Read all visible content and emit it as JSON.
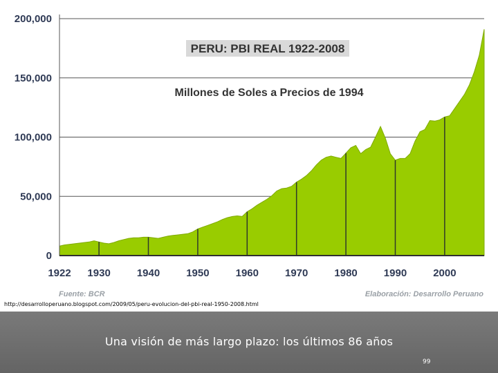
{
  "chart_data": {
    "type": "area",
    "title": "PERU: PBI REAL 1922-2008",
    "subtitle": "Millones de Soles a Precios de 1994",
    "ylim": [
      0,
      200000
    ],
    "xlim": [
      1922,
      2008
    ],
    "y_ticks": [
      "0",
      "50,000",
      "100,000",
      "150,000",
      "200,000"
    ],
    "x_ticks": [
      "1922",
      "1930",
      "1940",
      "1950",
      "1960",
      "1970",
      "1980",
      "1990",
      "2000"
    ],
    "grid": true,
    "fill_color": "#99cc00",
    "source": "Fuente: BCR",
    "credit": "Elaboración: Desarrollo Peruano",
    "x": [
      1922,
      1923,
      1924,
      1925,
      1926,
      1927,
      1928,
      1929,
      1930,
      1931,
      1932,
      1933,
      1934,
      1935,
      1936,
      1937,
      1938,
      1939,
      1940,
      1941,
      1942,
      1943,
      1944,
      1945,
      1946,
      1947,
      1948,
      1949,
      1950,
      1951,
      1952,
      1953,
      1954,
      1955,
      1956,
      1957,
      1958,
      1959,
      1960,
      1961,
      1962,
      1963,
      1964,
      1965,
      1966,
      1967,
      1968,
      1969,
      1970,
      1971,
      1972,
      1973,
      1974,
      1975,
      1976,
      1977,
      1978,
      1979,
      1980,
      1981,
      1982,
      1983,
      1984,
      1985,
      1986,
      1987,
      1988,
      1989,
      1990,
      1991,
      1992,
      1993,
      1994,
      1995,
      1996,
      1997,
      1998,
      1999,
      2000,
      2001,
      2002,
      2003,
      2004,
      2005,
      2006,
      2007,
      2008
    ],
    "values": [
      8000,
      9000,
      9500,
      10000,
      10500,
      11000,
      11500,
      12500,
      11500,
      10500,
      10000,
      11000,
      12500,
      13500,
      14500,
      15000,
      15000,
      15500,
      15500,
      15000,
      14500,
      15500,
      16500,
      17000,
      17500,
      18000,
      18500,
      20000,
      22500,
      24000,
      25500,
      27000,
      28500,
      30500,
      32000,
      33000,
      33500,
      33000,
      37000,
      39500,
      42500,
      45000,
      47500,
      50500,
      54500,
      56500,
      57000,
      58500,
      62000,
      64500,
      67500,
      71500,
      76500,
      80500,
      83000,
      84000,
      83000,
      82000,
      86500,
      91000,
      93000,
      86000,
      89500,
      91500,
      100000,
      109000,
      99000,
      86000,
      80500,
      82000,
      82000,
      86000,
      96500,
      104500,
      106500,
      114000,
      113500,
      114500,
      117000,
      118000,
      124000,
      130000,
      136000,
      144000,
      155000,
      169000,
      191000
    ]
  },
  "source_url": "http://desarrolloperuano.blogspot.com/2009/05/peru-evolucion-del-pbi-real-1950-2008.html",
  "slide": {
    "caption": "Una visión de más largo plazo: los últimos 86 años",
    "page_number": "99"
  }
}
